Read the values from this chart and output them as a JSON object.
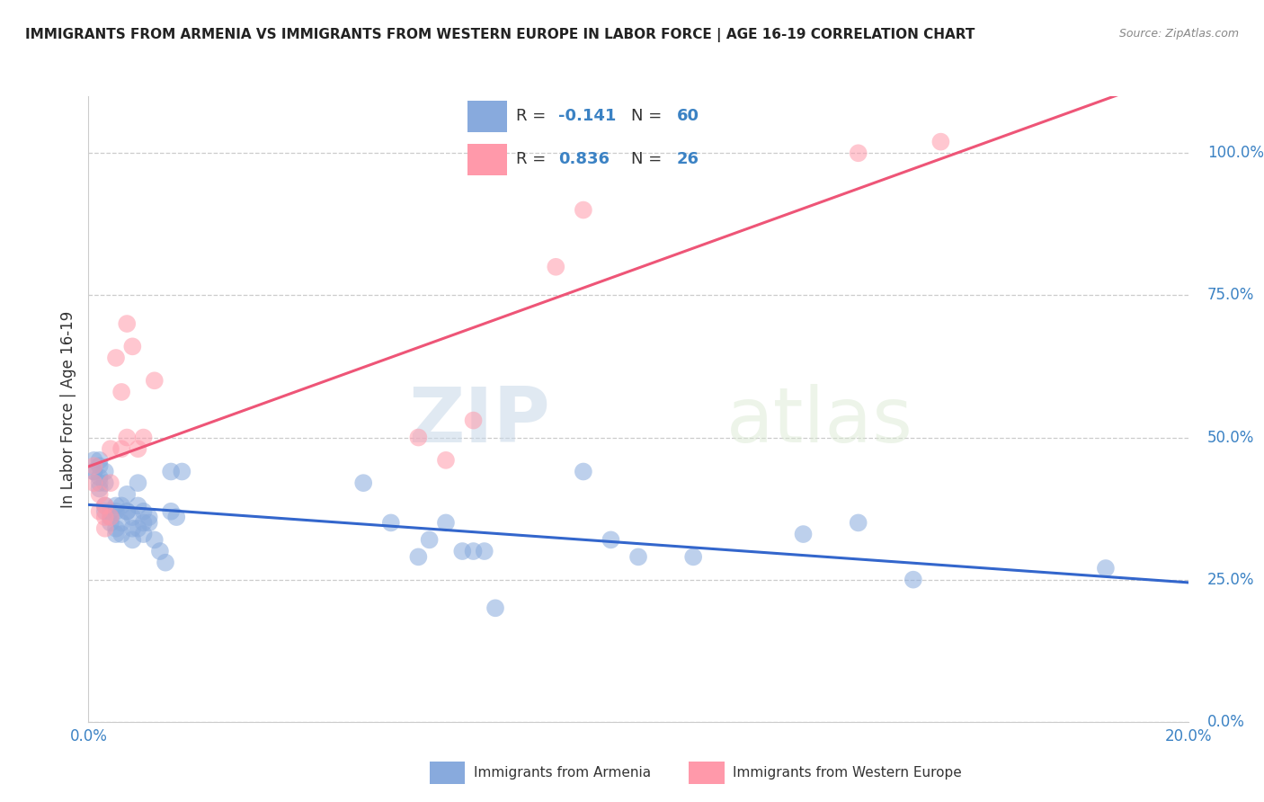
{
  "title": "IMMIGRANTS FROM ARMENIA VS IMMIGRANTS FROM WESTERN EUROPE IN LABOR FORCE | AGE 16-19 CORRELATION CHART",
  "source": "Source: ZipAtlas.com",
  "ylabel": "In Labor Force | Age 16-19",
  "legend_label1": "Immigrants from Armenia",
  "legend_label2": "Immigrants from Western Europe",
  "r1": -0.141,
  "n1": 60,
  "r2": 0.836,
  "n2": 26,
  "color1": "#88AADD",
  "color2": "#FF99AA",
  "line1_color": "#3366CC",
  "line2_color": "#EE5577",
  "xlim": [
    0.0,
    0.2
  ],
  "ylim": [
    0.0,
    1.1
  ],
  "right_yticks": [
    0.0,
    0.25,
    0.5,
    0.75,
    1.0
  ],
  "right_yticklabels": [
    "0.0%",
    "25.0%",
    "50.0%",
    "75.0%",
    "100.0%"
  ],
  "xticks": [
    0.0,
    0.05,
    0.1,
    0.15,
    0.2
  ],
  "xticklabels": [
    "0.0%",
    "",
    "",
    "",
    "20.0%"
  ],
  "watermark_zip": "ZIP",
  "watermark_atlas": "atlas",
  "blue_x": [
    0.001,
    0.001,
    0.001,
    0.002,
    0.002,
    0.002,
    0.002,
    0.002,
    0.003,
    0.003,
    0.003,
    0.003,
    0.004,
    0.004,
    0.004,
    0.005,
    0.005,
    0.005,
    0.005,
    0.006,
    0.006,
    0.006,
    0.007,
    0.007,
    0.007,
    0.008,
    0.008,
    0.008,
    0.009,
    0.009,
    0.009,
    0.01,
    0.01,
    0.01,
    0.011,
    0.011,
    0.012,
    0.013,
    0.014,
    0.015,
    0.015,
    0.016,
    0.017,
    0.05,
    0.055,
    0.06,
    0.062,
    0.065,
    0.068,
    0.07,
    0.072,
    0.074,
    0.09,
    0.095,
    0.1,
    0.11,
    0.13,
    0.14,
    0.15,
    0.185
  ],
  "blue_y": [
    0.44,
    0.46,
    0.44,
    0.43,
    0.42,
    0.45,
    0.41,
    0.46,
    0.44,
    0.42,
    0.38,
    0.37,
    0.37,
    0.36,
    0.35,
    0.37,
    0.38,
    0.34,
    0.33,
    0.38,
    0.35,
    0.33,
    0.37,
    0.4,
    0.37,
    0.36,
    0.34,
    0.32,
    0.42,
    0.38,
    0.34,
    0.37,
    0.35,
    0.33,
    0.35,
    0.36,
    0.32,
    0.3,
    0.28,
    0.44,
    0.37,
    0.36,
    0.44,
    0.42,
    0.35,
    0.29,
    0.32,
    0.35,
    0.3,
    0.3,
    0.3,
    0.2,
    0.44,
    0.32,
    0.29,
    0.29,
    0.33,
    0.35,
    0.25,
    0.27
  ],
  "pink_x": [
    0.001,
    0.001,
    0.002,
    0.002,
    0.003,
    0.003,
    0.003,
    0.004,
    0.004,
    0.004,
    0.005,
    0.006,
    0.006,
    0.007,
    0.007,
    0.008,
    0.009,
    0.01,
    0.012,
    0.06,
    0.065,
    0.07,
    0.085,
    0.09,
    0.14,
    0.155
  ],
  "pink_y": [
    0.42,
    0.45,
    0.37,
    0.4,
    0.38,
    0.36,
    0.34,
    0.48,
    0.42,
    0.36,
    0.64,
    0.58,
    0.48,
    0.7,
    0.5,
    0.66,
    0.48,
    0.5,
    0.6,
    0.5,
    0.46,
    0.53,
    0.8,
    0.9,
    1.0,
    1.02
  ]
}
